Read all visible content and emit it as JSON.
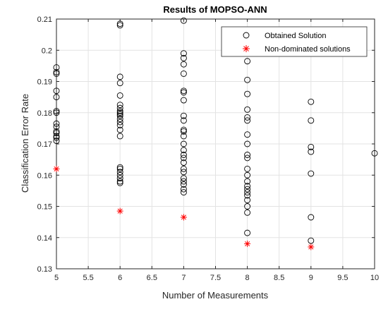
{
  "chart_data": {
    "type": "scatter",
    "title": "Results of MOPSO-ANN",
    "xlabel": "Number of Measurements",
    "ylabel": "Classification Error Rate",
    "xlim": [
      5,
      10
    ],
    "ylim": [
      0.13,
      0.21
    ],
    "x_ticks": [
      "5",
      "5.5",
      "6",
      "6.5",
      "7",
      "7.5",
      "8",
      "8.5",
      "9",
      "9.5",
      "10"
    ],
    "y_ticks": [
      "0.13",
      "0.14",
      "0.15",
      "0.16",
      "0.17",
      "0.18",
      "0.19",
      "0.2",
      "0.21"
    ],
    "grid": true,
    "legend_position": "top-right",
    "series": [
      {
        "name": "Obtained Solution",
        "marker": "circle",
        "color": "#000000",
        "points": [
          [
            5,
            0.1945
          ],
          [
            5,
            0.193
          ],
          [
            5,
            0.1925
          ],
          [
            5,
            0.187
          ],
          [
            5,
            0.185
          ],
          [
            5,
            0.1805
          ],
          [
            5,
            0.18
          ],
          [
            5,
            0.1765
          ],
          [
            5,
            0.1755
          ],
          [
            5,
            0.174
          ],
          [
            5,
            0.1735
          ],
          [
            5,
            0.1725
          ],
          [
            5,
            0.172
          ],
          [
            5,
            0.171
          ],
          [
            6,
            0.2085
          ],
          [
            6,
            0.208
          ],
          [
            6,
            0.1915
          ],
          [
            6,
            0.1895
          ],
          [
            6,
            0.1855
          ],
          [
            6,
            0.1825
          ],
          [
            6,
            0.1815
          ],
          [
            6,
            0.1805
          ],
          [
            6,
            0.18
          ],
          [
            6,
            0.1795
          ],
          [
            6,
            0.179
          ],
          [
            6,
            0.178
          ],
          [
            6,
            0.177
          ],
          [
            6,
            0.176
          ],
          [
            6,
            0.1745
          ],
          [
            6,
            0.1725
          ],
          [
            6,
            0.1625
          ],
          [
            6,
            0.162
          ],
          [
            6,
            0.161
          ],
          [
            6,
            0.16
          ],
          [
            6,
            0.159
          ],
          [
            6,
            0.158
          ],
          [
            6,
            0.1575
          ],
          [
            7,
            0.2095
          ],
          [
            7,
            0.199
          ],
          [
            7,
            0.1975
          ],
          [
            7,
            0.1955
          ],
          [
            7,
            0.1925
          ],
          [
            7,
            0.187
          ],
          [
            7,
            0.1865
          ],
          [
            7,
            0.184
          ],
          [
            7,
            0.179
          ],
          [
            7,
            0.1775
          ],
          [
            7,
            0.1745
          ],
          [
            7,
            0.174
          ],
          [
            7,
            0.1725
          ],
          [
            7,
            0.17
          ],
          [
            7,
            0.168
          ],
          [
            7,
            0.1665
          ],
          [
            7,
            0.1655
          ],
          [
            7,
            0.164
          ],
          [
            7,
            0.162
          ],
          [
            7,
            0.161
          ],
          [
            7,
            0.159
          ],
          [
            7,
            0.158
          ],
          [
            7,
            0.157
          ],
          [
            7,
            0.1555
          ],
          [
            7,
            0.1545
          ],
          [
            8,
            0.1965
          ],
          [
            8,
            0.1905
          ],
          [
            8,
            0.186
          ],
          [
            8,
            0.181
          ],
          [
            8,
            0.1785
          ],
          [
            8,
            0.1775
          ],
          [
            8,
            0.173
          ],
          [
            8,
            0.17
          ],
          [
            8,
            0.1665
          ],
          [
            8,
            0.1655
          ],
          [
            8,
            0.162
          ],
          [
            8,
            0.16
          ],
          [
            8,
            0.158
          ],
          [
            8,
            0.1565
          ],
          [
            8,
            0.1555
          ],
          [
            8,
            0.1545
          ],
          [
            8,
            0.1535
          ],
          [
            8,
            0.152
          ],
          [
            8,
            0.15
          ],
          [
            8,
            0.148
          ],
          [
            8,
            0.1415
          ],
          [
            9,
            0.1835
          ],
          [
            9,
            0.1775
          ],
          [
            9,
            0.169
          ],
          [
            9,
            0.1675
          ],
          [
            9,
            0.1605
          ],
          [
            9,
            0.1465
          ],
          [
            9,
            0.139
          ],
          [
            10,
            0.167
          ]
        ]
      },
      {
        "name": "Non-dominated solutions",
        "marker": "asterisk",
        "color": "#ff0000",
        "points": [
          [
            5,
            0.162
          ],
          [
            6,
            0.1485
          ],
          [
            7,
            0.1465
          ],
          [
            8,
            0.138
          ],
          [
            9,
            0.137
          ]
        ]
      }
    ]
  }
}
